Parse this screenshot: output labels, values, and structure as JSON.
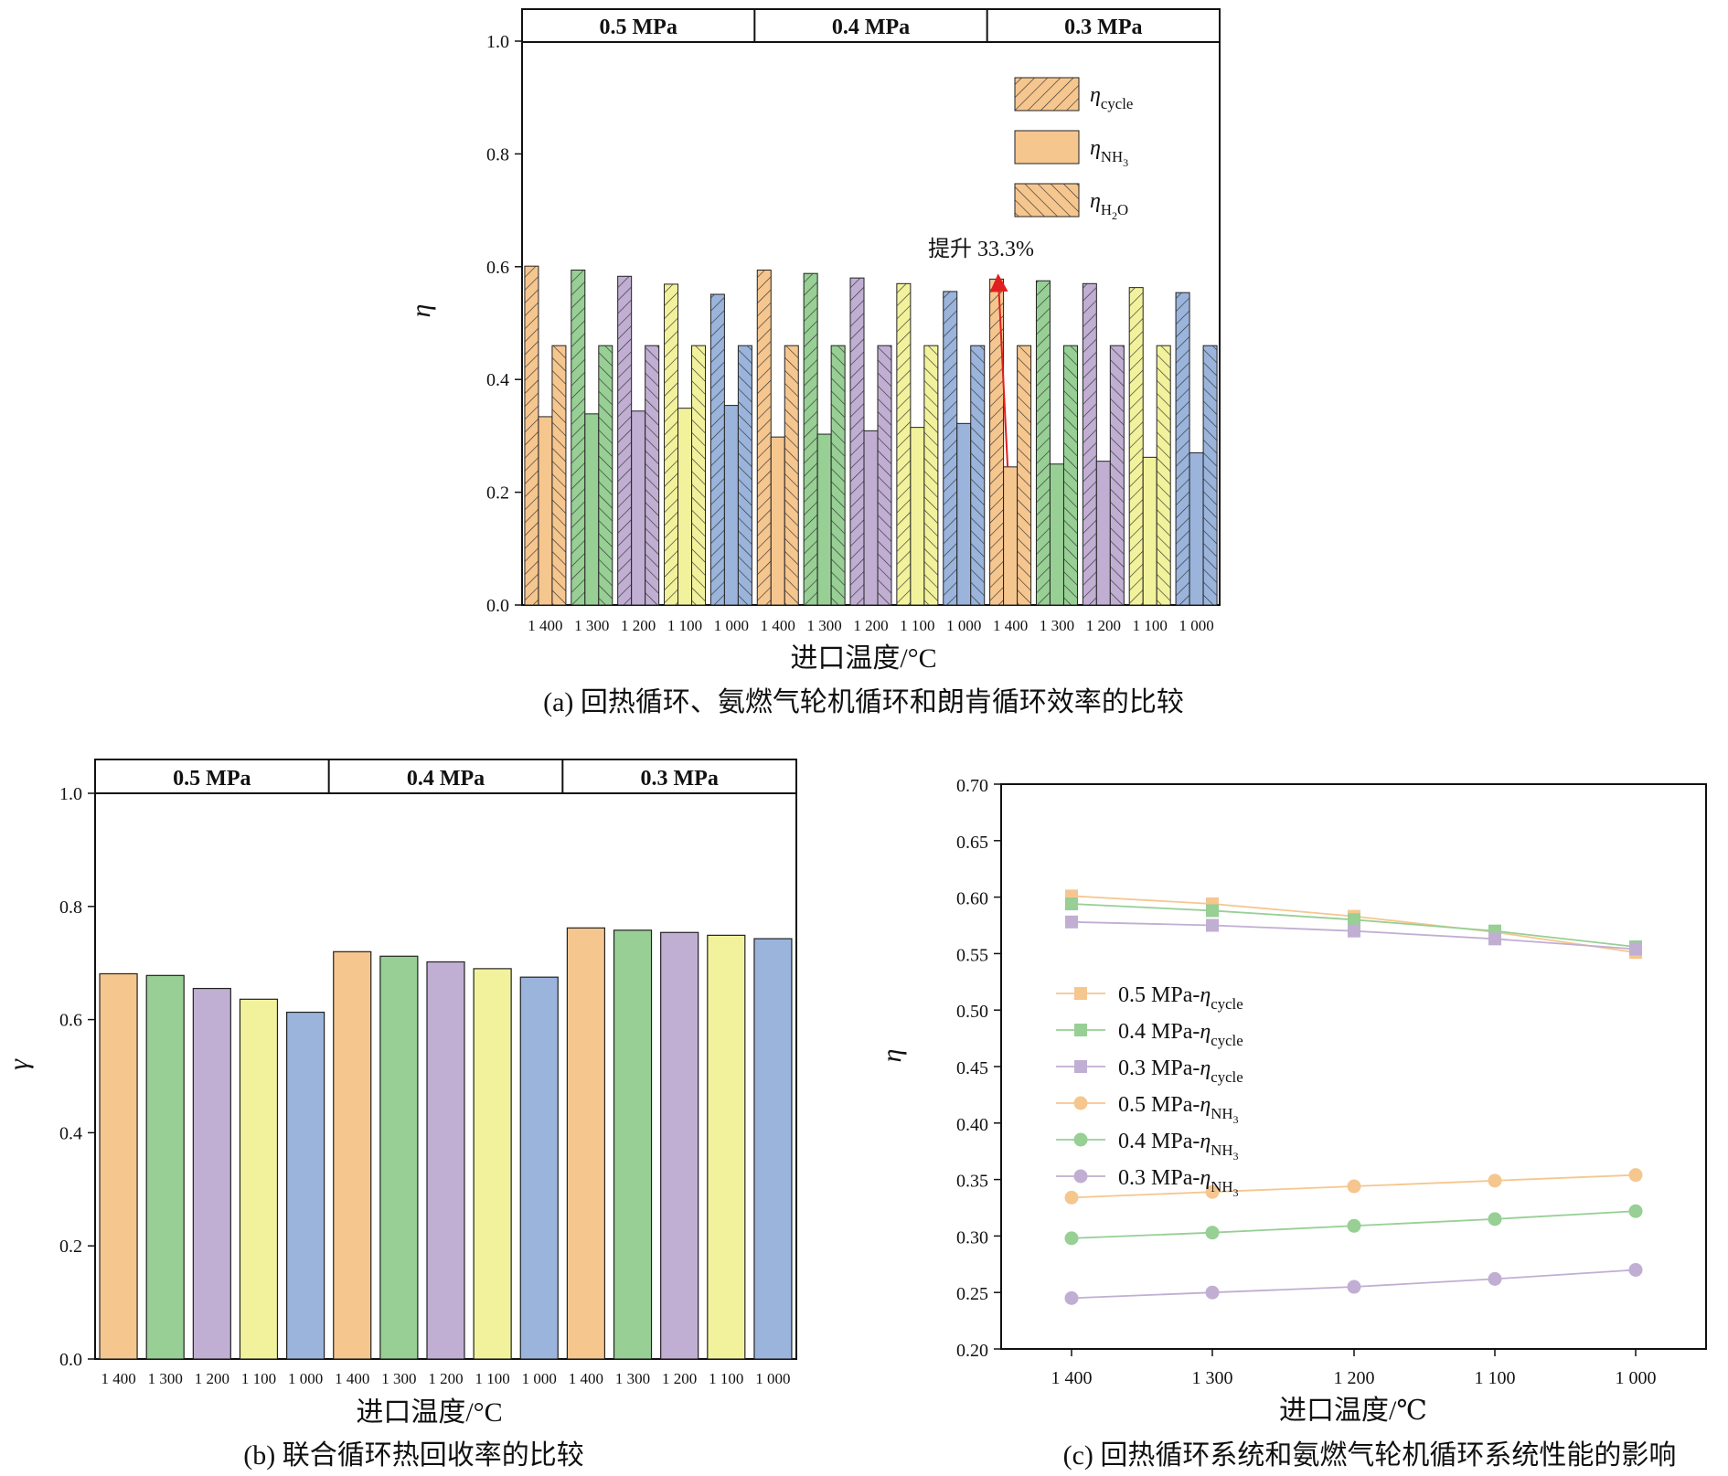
{
  "colors": {
    "orange": "#f6c68f",
    "green": "#97cf94",
    "purple": "#c1aed3",
    "yellow": "#f2f29c",
    "blue": "#9ab4dc",
    "annotation_arrow": "#e02020"
  },
  "chart_data": [
    {
      "id": "a",
      "type": "bar",
      "caption": "(a) 回热循环、氨燃气轮机循环和朗肯循环效率的比较",
      "xlabel": "进口温度/°C",
      "ylabel": "η",
      "ylim": [
        0.0,
        1.0
      ],
      "yticks": [
        "0.0",
        "0.2",
        "0.4",
        "0.6",
        "0.8",
        "1.0"
      ],
      "bands": [
        "0.5 MPa",
        "0.4 MPa",
        "0.3 MPa"
      ],
      "categories": [
        "1 400",
        "1 300",
        "1 200",
        "1 100",
        "1 000",
        "1 400",
        "1 300",
        "1 200",
        "1 100",
        "1 000",
        "1 400",
        "1 300",
        "1 200",
        "1 100",
        "1 000"
      ],
      "legend": [
        {
          "key": "cycle",
          "base": "η",
          "sub": "cycle",
          "pattern": "hatch-fwd"
        },
        {
          "key": "nh3",
          "base": "η",
          "sub": "NH",
          "subsub": "3",
          "pattern": "solid"
        },
        {
          "key": "h2o",
          "base": "η",
          "sub": "H",
          "subsub": "2",
          "sub2": "O",
          "pattern": "hatch-back"
        }
      ],
      "series": [
        {
          "key": "cycle",
          "values": [
            0.601,
            0.594,
            0.583,
            0.569,
            0.551,
            0.594,
            0.588,
            0.58,
            0.57,
            0.556,
            0.578,
            0.575,
            0.57,
            0.563,
            0.554
          ]
        },
        {
          "key": "nh3",
          "values": [
            0.334,
            0.339,
            0.344,
            0.349,
            0.354,
            0.298,
            0.303,
            0.309,
            0.315,
            0.322,
            0.245,
            0.25,
            0.255,
            0.262,
            0.27
          ]
        },
        {
          "key": "h2o",
          "values": [
            0.46,
            0.46,
            0.46,
            0.46,
            0.46,
            0.46,
            0.46,
            0.46,
            0.46,
            0.46,
            0.46,
            0.46,
            0.46,
            0.46,
            0.46
          ]
        }
      ],
      "annotation": {
        "text": "提升  33.3%",
        "category_index": 10,
        "from": 0.245,
        "to": 0.578
      }
    },
    {
      "id": "b",
      "type": "bar",
      "caption": "(b) 联合循环热回收率的比较",
      "xlabel": "进口温度/°C",
      "ylabel": "γ",
      "ylim": [
        0.0,
        1.0
      ],
      "yticks": [
        "0.0",
        "0.2",
        "0.4",
        "0.6",
        "0.8",
        "1.0"
      ],
      "bands": [
        "0.5 MPa",
        "0.4 MPa",
        "0.3 MPa"
      ],
      "categories": [
        "1 400",
        "1 300",
        "1 200",
        "1 100",
        "1 000",
        "1 400",
        "1 300",
        "1 200",
        "1 100",
        "1 000",
        "1 400",
        "1 300",
        "1 200",
        "1 100",
        "1 000"
      ],
      "values": [
        0.681,
        0.678,
        0.655,
        0.636,
        0.613,
        0.72,
        0.712,
        0.702,
        0.69,
        0.675,
        0.762,
        0.758,
        0.754,
        0.749,
        0.743
      ]
    },
    {
      "id": "c",
      "type": "line",
      "caption": "(c) 回热循环系统和氨燃气轮机循环系统性能的影响",
      "xlabel": "进口温度/℃",
      "ylabel": "η",
      "x": [
        "1 400",
        "1 300",
        "1 200",
        "1 100",
        "1 000"
      ],
      "ylim": [
        0.2,
        0.7
      ],
      "yticks": [
        "0.20",
        "0.25",
        "0.30",
        "0.35",
        "0.40",
        "0.45",
        "0.50",
        "0.55",
        "0.60",
        "0.65",
        "0.70"
      ],
      "series": [
        {
          "prefix": "0.5 MPa-",
          "base": "η",
          "sub": "cycle",
          "marker": "square",
          "color": "#f6c68f",
          "values": [
            0.601,
            0.594,
            0.583,
            0.569,
            0.551
          ]
        },
        {
          "prefix": "0.4 MPa-",
          "base": "η",
          "sub": "cycle",
          "marker": "square",
          "color": "#97cf94",
          "values": [
            0.594,
            0.588,
            0.58,
            0.57,
            0.556
          ]
        },
        {
          "prefix": "0.3 MPa-",
          "base": "η",
          "sub": "cycle",
          "marker": "square",
          "color": "#c1aed3",
          "values": [
            0.578,
            0.575,
            0.57,
            0.563,
            0.554
          ]
        },
        {
          "prefix": "0.5 MPa-",
          "base": "η",
          "sub": "NH",
          "subsub": "3",
          "marker": "circle",
          "color": "#f6c68f",
          "values": [
            0.334,
            0.339,
            0.344,
            0.349,
            0.354
          ]
        },
        {
          "prefix": "0.4 MPa-",
          "base": "η",
          "sub": "NH",
          "subsub": "3",
          "marker": "circle",
          "color": "#97cf94",
          "values": [
            0.298,
            0.303,
            0.309,
            0.315,
            0.322
          ]
        },
        {
          "prefix": "0.3 MPa-",
          "base": "η",
          "sub": "NH",
          "subsub": "3",
          "marker": "circle",
          "color": "#c1aed3",
          "values": [
            0.245,
            0.25,
            0.255,
            0.262,
            0.27
          ]
        }
      ]
    }
  ]
}
